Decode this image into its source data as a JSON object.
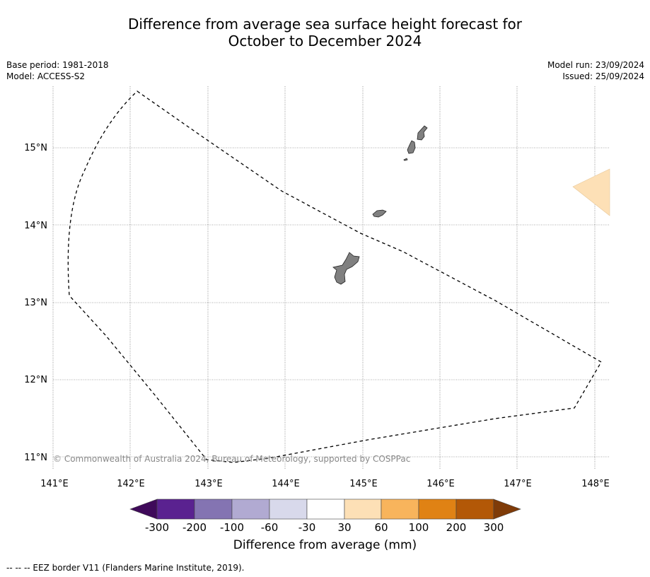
{
  "header": {
    "title_line1": "Difference from average sea surface height forecast for",
    "title_line2": "October to December 2024",
    "base_period": "Base period: 1981-2018",
    "model": "Model: ACCESS-S2",
    "model_run": "Model run: 23/09/2024",
    "issued": "Issued: 25/09/2024"
  },
  "map": {
    "lon_labels": [
      "141°E",
      "142°E",
      "143°E",
      "144°E",
      "145°E",
      "146°E",
      "147°E",
      "148°E"
    ],
    "lat_labels": [
      "15°N",
      "14°N",
      "13°N",
      "12°N",
      "11°N"
    ],
    "copyright": "© Commonwealth of Australia 2024, Bureau of Meteorology, supported by COSPPac",
    "land_color": "#808080",
    "anomaly_fill_color": "#fde0b6"
  },
  "colorbar": {
    "ticks": [
      "-300",
      "-200",
      "-100",
      "-60",
      "-30",
      "30",
      "60",
      "100",
      "200",
      "300"
    ],
    "colors": [
      "#3f0a5a",
      "#5a2290",
      "#8474b2",
      "#b1aad2",
      "#d8d9eb",
      "#ffffff",
      "#fde0b6",
      "#f8b45c",
      "#e08214",
      "#b35807",
      "#7f3b08"
    ],
    "label": "Difference from average (mm)"
  },
  "legend": {
    "eez_text": "--  --  -- EEZ border V11 (Flanders Marine Institute, 2019)."
  }
}
